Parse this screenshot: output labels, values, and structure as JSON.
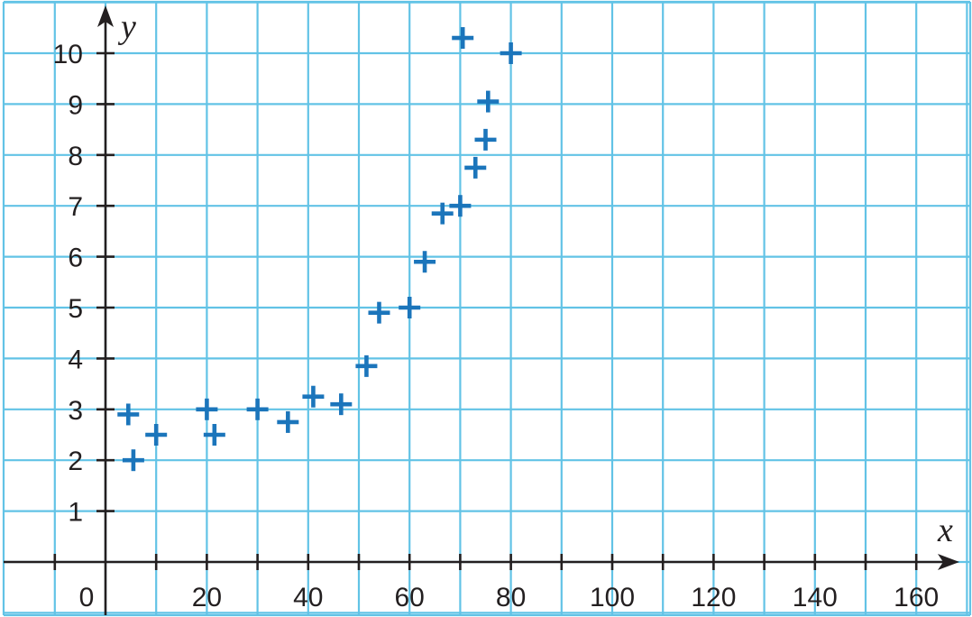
{
  "chart_data": {
    "type": "scatter",
    "xlabel": "x",
    "ylabel": "y",
    "xlim": [
      -10,
      170
    ],
    "ylim": [
      -1,
      11
    ],
    "x_ticks": [
      0,
      20,
      40,
      60,
      80,
      100,
      120,
      140,
      160
    ],
    "y_ticks": [
      1,
      2,
      3,
      4,
      5,
      6,
      7,
      8,
      9,
      10
    ],
    "grid": true,
    "grid_step_x": 10,
    "grid_step_y": 1,
    "grid_color": "#62c3e6",
    "marker": "plus",
    "marker_color": "#1b75bb",
    "points": [
      {
        "x": 4.5,
        "y": 2.9
      },
      {
        "x": 5.5,
        "y": 2.0
      },
      {
        "x": 10,
        "y": 2.5
      },
      {
        "x": 20,
        "y": 3.0
      },
      {
        "x": 21.5,
        "y": 2.5
      },
      {
        "x": 30,
        "y": 3.0
      },
      {
        "x": 36,
        "y": 2.75
      },
      {
        "x": 41,
        "y": 3.25
      },
      {
        "x": 46.5,
        "y": 3.1
      },
      {
        "x": 51.5,
        "y": 3.85
      },
      {
        "x": 54,
        "y": 4.9
      },
      {
        "x": 60,
        "y": 5.0
      },
      {
        "x": 63,
        "y": 5.9
      },
      {
        "x": 66.5,
        "y": 6.85
      },
      {
        "x": 70,
        "y": 7.0
      },
      {
        "x": 70.5,
        "y": 10.3
      },
      {
        "x": 73,
        "y": 7.75
      },
      {
        "x": 75,
        "y": 8.3
      },
      {
        "x": 75.5,
        "y": 9.05
      },
      {
        "x": 80,
        "y": 10.0
      }
    ]
  }
}
